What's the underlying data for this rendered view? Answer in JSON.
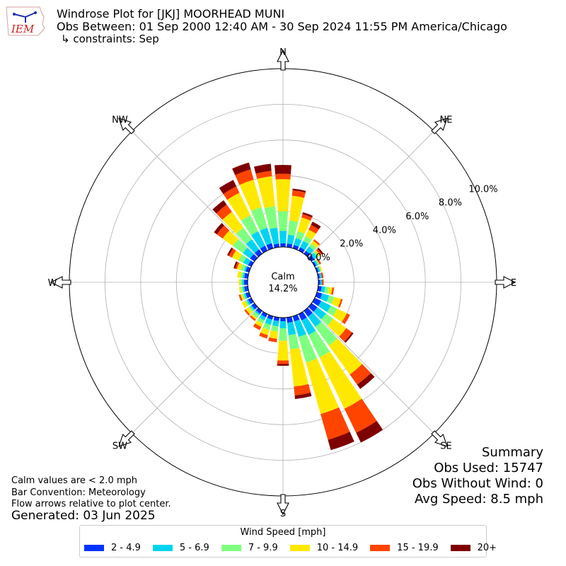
{
  "header": {
    "logo_text": "IEM",
    "title": "Windrose Plot for [JKJ] MOORHEAD MUNI",
    "obs_between": "Obs Between: 01 Sep 2000 12:40 AM - 30 Sep 2024 11:55 PM America/Chicago",
    "constraints": "↳ constraints: Sep"
  },
  "notes": {
    "calm_note": "Calm values are < 2.0 mph",
    "bar_convention": "Bar Convention: Meteorology",
    "flow_arrows": "Flow arrows relative to plot center.",
    "generated": "Generated: 03 Jun 2025"
  },
  "summary": {
    "title": "Summary",
    "obs_used": "Obs Used: 15747",
    "obs_without_wind": "Obs Without Wind: 0",
    "avg_speed": "Avg Speed: 8.5 mph"
  },
  "chart_data": {
    "type": "windrose",
    "calm_label": "Calm",
    "calm_value": "14.2%",
    "radial_ticks": [
      "0.0%",
      "2.0%",
      "4.0%",
      "6.0%",
      "8.0%",
      "10.0%"
    ],
    "radial_tick_values": [
      0,
      2,
      4,
      6,
      8,
      10
    ],
    "rmax": 10.0,
    "calm_percent": 14.2,
    "compass_labels": [
      "N",
      "NE",
      "E",
      "SE",
      "S",
      "SW",
      "W",
      "NW"
    ],
    "legend_title": "Wind Speed [mph]",
    "speed_bins": [
      "2 - 4.9",
      "5 - 6.9",
      "7 - 9.9",
      "10 - 14.9",
      "15 - 19.9",
      "20+"
    ],
    "colors": [
      "#0033ff",
      "#00d4f0",
      "#7fff7f",
      "#ffe800",
      "#ff4400",
      "#7f0000"
    ],
    "directions": [
      0,
      10,
      20,
      30,
      40,
      50,
      60,
      70,
      80,
      90,
      100,
      110,
      120,
      130,
      140,
      150,
      160,
      170,
      180,
      190,
      200,
      210,
      220,
      230,
      240,
      250,
      260,
      270,
      280,
      290,
      300,
      310,
      320,
      330,
      340,
      350
    ],
    "cumulative": [
      [
        0.2,
        0.9,
        2.0,
        3.8,
        4.1,
        4.6
      ],
      [
        0.2,
        0.7,
        1.5,
        2.9,
        3.2,
        3.3
      ],
      [
        0.2,
        0.6,
        1.0,
        1.8,
        2.0,
        2.1
      ],
      [
        0.2,
        0.6,
        0.9,
        1.3,
        1.6,
        1.8
      ],
      [
        0.2,
        0.5,
        0.7,
        0.9,
        1.0,
        1.0
      ],
      [
        0.2,
        0.4,
        0.5,
        0.6,
        0.7,
        0.8
      ],
      [
        0.1,
        0.2,
        0.3,
        0.3,
        0.4,
        0.4
      ],
      [
        0.1,
        0.2,
        0.2,
        0.3,
        0.3,
        0.3
      ],
      [
        0.1,
        0.2,
        0.2,
        0.2,
        0.3,
        0.3
      ],
      [
        0.1,
        0.2,
        0.2,
        0.2,
        0.3,
        0.3
      ],
      [
        0.2,
        0.4,
        0.6,
        0.8,
        0.9,
        0.9
      ],
      [
        0.3,
        0.7,
        1.0,
        1.4,
        1.5,
        1.5
      ],
      [
        0.4,
        1.0,
        1.4,
        2.0,
        2.2,
        2.2
      ],
      [
        0.4,
        1.0,
        1.5,
        2.4,
        2.8,
        2.9
      ],
      [
        0.4,
        1.1,
        2.4,
        4.4,
        5.1,
        5.4
      ],
      [
        0.4,
        1.3,
        2.7,
        5.9,
        7.4,
        8.0
      ],
      [
        0.3,
        1.2,
        2.7,
        5.7,
        7.2,
        7.8
      ],
      [
        0.3,
        1.0,
        1.8,
        3.9,
        4.4,
        4.6
      ],
      [
        0.2,
        0.6,
        1.3,
        2.4,
        2.6,
        2.7
      ],
      [
        0.2,
        0.5,
        0.8,
        1.2,
        1.4,
        1.4
      ],
      [
        0.2,
        0.5,
        0.8,
        1.1,
        1.3,
        1.3
      ],
      [
        0.2,
        0.4,
        0.6,
        0.8,
        1.0,
        1.0
      ],
      [
        0.2,
        0.3,
        0.5,
        0.6,
        0.7,
        0.7
      ],
      [
        0.2,
        0.3,
        0.4,
        0.6,
        0.7,
        0.7
      ],
      [
        0.2,
        0.3,
        0.4,
        0.6,
        0.6,
        0.6
      ],
      [
        0.2,
        0.3,
        0.4,
        0.5,
        0.6,
        0.6
      ],
      [
        0.2,
        0.3,
        0.4,
        0.5,
        0.5,
        0.5
      ],
      [
        0.2,
        0.3,
        0.4,
        0.5,
        0.5,
        0.5
      ],
      [
        0.2,
        0.3,
        0.4,
        0.6,
        0.6,
        0.6
      ],
      [
        0.2,
        0.3,
        0.5,
        0.7,
        0.8,
        0.9
      ],
      [
        0.2,
        0.5,
        0.8,
        1.2,
        1.4,
        1.5
      ],
      [
        0.3,
        0.8,
        1.5,
        2.2,
        2.6,
        2.8
      ],
      [
        0.3,
        1.0,
        1.8,
        2.9,
        3.4,
        3.7
      ],
      [
        0.3,
        1.2,
        2.2,
        3.6,
        4.0,
        4.4
      ],
      [
        0.3,
        1.2,
        2.4,
        4.0,
        4.6,
        5.0
      ],
      [
        0.2,
        1.1,
        2.3,
        4.0,
        4.3,
        4.7
      ]
    ]
  }
}
